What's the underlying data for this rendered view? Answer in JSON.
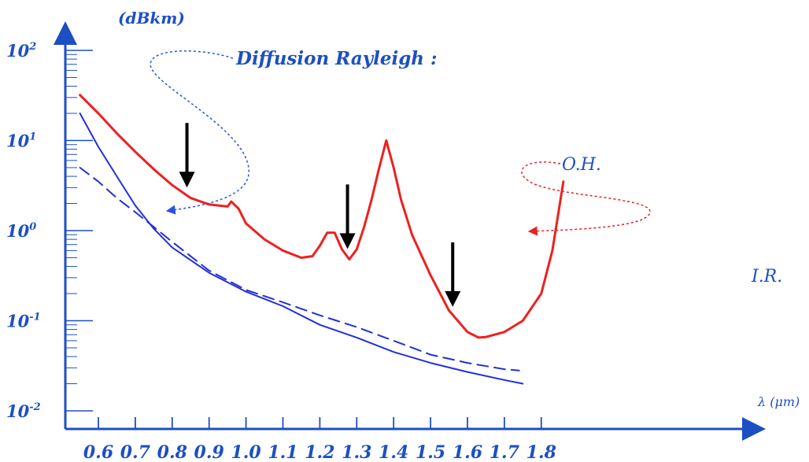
{
  "chart_data": {
    "type": "line",
    "y_scale": "log",
    "ylabel": "(dBkm)",
    "xlabel": "λ (μm)",
    "xlim": [
      0.55,
      1.85
    ],
    "ylim": [
      0.01,
      100
    ],
    "x_ticks": [
      0.6,
      0.7,
      0.8,
      0.9,
      1.0,
      1.1,
      1.2,
      1.3,
      1.4,
      1.5,
      1.6,
      1.7,
      1.8
    ],
    "x_tick_labels": [
      "0.6",
      "0.7",
      "0.8",
      "0.9",
      "1.0",
      "1.1",
      "1.2",
      "1.3",
      "1.4",
      "1.5",
      "1.6",
      "1.7",
      "1.8"
    ],
    "y_ticks": [
      {
        "value": 100,
        "base": "10",
        "exp": "2"
      },
      {
        "value": 10,
        "base": "10",
        "exp": "1"
      },
      {
        "value": 1,
        "base": "10",
        "exp": "0"
      },
      {
        "value": 0.1,
        "base": "10",
        "exp": "-1"
      },
      {
        "value": 0.01,
        "base": "10",
        "exp": "-2"
      }
    ],
    "series": [
      {
        "color": "#ee2020",
        "style": "solid",
        "x": [
          0.55,
          0.6,
          0.65,
          0.7,
          0.75,
          0.8,
          0.85,
          0.9,
          0.95,
          0.96,
          0.98,
          1.0,
          1.05,
          1.1,
          1.15,
          1.18,
          1.2,
          1.22,
          1.24,
          1.26,
          1.28,
          1.3,
          1.32,
          1.34,
          1.36,
          1.38,
          1.4,
          1.42,
          1.45,
          1.5,
          1.55,
          1.6,
          1.63,
          1.65,
          1.7,
          1.75,
          1.8,
          1.83,
          1.86
        ],
        "y": [
          32,
          20,
          12,
          7.5,
          4.8,
          3.2,
          2.3,
          1.95,
          1.85,
          2.1,
          1.75,
          1.2,
          0.8,
          0.6,
          0.5,
          0.52,
          0.68,
          0.95,
          0.95,
          0.62,
          0.48,
          0.62,
          1.1,
          2.2,
          4.8,
          10,
          5.0,
          2.2,
          0.9,
          0.32,
          0.13,
          0.075,
          0.065,
          0.066,
          0.075,
          0.1,
          0.2,
          0.6,
          3.5
        ]
      },
      {
        "color": "#2230d8",
        "style": "solid",
        "x": [
          0.55,
          0.6,
          0.65,
          0.7,
          0.75,
          0.8,
          0.9,
          1.0,
          1.1,
          1.2,
          1.3,
          1.4,
          1.5,
          1.6,
          1.7,
          1.75
        ],
        "y": [
          20,
          8.5,
          4.0,
          1.9,
          1.05,
          0.65,
          0.34,
          0.21,
          0.145,
          0.09,
          0.065,
          0.045,
          0.034,
          0.027,
          0.022,
          0.02
        ]
      },
      {
        "color": "#2230d8",
        "style": "dashed",
        "x": [
          0.55,
          0.6,
          0.65,
          0.7,
          0.75,
          0.8,
          0.9,
          1.0,
          1.1,
          1.2,
          1.3,
          1.4,
          1.5,
          1.6,
          1.7,
          1.74
        ],
        "y": [
          5.0,
          3.5,
          2.3,
          1.6,
          1.1,
          0.75,
          0.36,
          0.22,
          0.16,
          0.115,
          0.085,
          0.06,
          0.042,
          0.034,
          0.029,
          0.028
        ]
      }
    ],
    "annotations": [
      {
        "text": "Diffusion Rayleigh :",
        "color": "#1d4fc4"
      },
      {
        "text": "O.H.",
        "color": "#1d4fc4"
      },
      {
        "text": "I.R.",
        "color": "#1d4fc4"
      }
    ],
    "arrows_down_at_x": [
      0.84,
      1.275,
      1.56
    ]
  }
}
